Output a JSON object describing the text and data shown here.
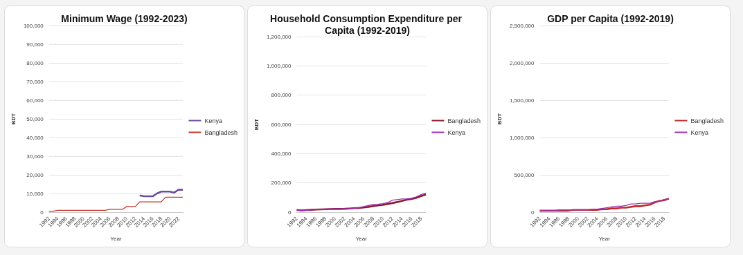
{
  "chart_data": [
    {
      "type": "line",
      "title": "Minimum Wage (1992-2023)",
      "xlabel": "Year",
      "ylabel": "BDT",
      "categories": [
        "1992",
        null,
        "1994",
        null,
        "1996",
        null,
        "1998",
        null,
        "2000",
        null,
        "2002",
        null,
        "2004",
        null,
        "2006",
        null,
        "2008",
        null,
        "2010",
        null,
        "2012",
        null,
        "2014",
        null,
        "2016",
        null,
        "2018",
        null,
        "2020",
        null,
        "2022",
        null
      ],
      "series": [
        {
          "name": "Kenya",
          "color": "#6a4c9c",
          "values": [
            null,
            null,
            null,
            null,
            null,
            null,
            null,
            null,
            null,
            null,
            null,
            null,
            null,
            null,
            null,
            null,
            null,
            null,
            null,
            null,
            null,
            9000,
            8500,
            8500,
            8500,
            10000,
            11000,
            11000,
            11000,
            10500,
            12000,
            12000
          ]
        },
        {
          "name": "Bangladesh",
          "color": "#c0392b",
          "values": [
            500,
            500,
            1000,
            1000,
            1000,
            1000,
            1000,
            1000,
            1000,
            1000,
            1000,
            1000,
            1000,
            1000,
            1500,
            1500,
            1500,
            1500,
            3000,
            3000,
            3000,
            5500,
            5500,
            5500,
            5500,
            5500,
            5500,
            8000,
            8000,
            8000,
            8000,
            8000
          ]
        }
      ],
      "ylim": [
        0,
        100000
      ],
      "yticks": [
        {
          "value": 0,
          "label": "0"
        },
        {
          "value": 10000,
          "label": "10,000"
        },
        {
          "value": 20000,
          "label": "20,000"
        },
        {
          "value": 30000,
          "label": "30,000"
        },
        {
          "value": 40000,
          "label": "40,000"
        },
        {
          "value": 50000,
          "label": "50,000"
        },
        {
          "value": 60000,
          "label": "60,000"
        },
        {
          "value": 70000,
          "label": "70,000"
        },
        {
          "value": 80000,
          "label": "80,000"
        },
        {
          "value": 90000,
          "label": "90,000"
        },
        {
          "value": 100000,
          "label": "100,000"
        }
      ],
      "grid": "y",
      "legend": "right",
      "marker": "none"
    },
    {
      "type": "line",
      "title": "Household Consumption Expenditure per Capita (1992-2019)",
      "xlabel": "Year",
      "ylabel": "BDT",
      "categories": [
        "1992",
        null,
        "1994",
        null,
        "1996",
        null,
        "1998",
        null,
        "2000",
        null,
        "2002",
        null,
        "2004",
        null,
        "2006",
        null,
        "2008",
        null,
        "2010",
        null,
        "2012",
        null,
        "2014",
        null,
        "2016",
        null,
        "2018",
        null
      ],
      "series": [
        {
          "name": "Bangladesh",
          "color": "#8b1a2b",
          "values": [
            15000,
            12000,
            14000,
            16000,
            18000,
            19000,
            20000,
            21000,
            22000,
            22000,
            23000,
            25000,
            27000,
            29000,
            32000,
            36000,
            41000,
            46000,
            50000,
            56000,
            62000,
            69000,
            77000,
            85000,
            90000,
            98000,
            110000,
            120000
          ]
        },
        {
          "name": "Kenya",
          "color": "#9b30c0",
          "values": [
            15000,
            10000,
            12000,
            15000,
            17000,
            19000,
            21000,
            22000,
            22000,
            22000,
            23000,
            24000,
            27000,
            30000,
            38000,
            46000,
            52000,
            54000,
            58000,
            65000,
            82000,
            86000,
            90000,
            90000,
            95000,
            105000,
            120000,
            130000
          ]
        }
      ],
      "ylim": [
        0,
        1200000
      ],
      "yticks": [
        {
          "value": 0,
          "label": "0"
        },
        {
          "value": 200000,
          "label": "200,000"
        },
        {
          "value": 400000,
          "label": "400,000"
        },
        {
          "value": 600000,
          "label": "600,000"
        },
        {
          "value": 800000,
          "label": "800,000"
        },
        {
          "value": 1000000,
          "label": "1,000,000"
        },
        {
          "value": 1200000,
          "label": "1,200,000"
        }
      ],
      "grid": "y",
      "legend": "right",
      "marker": "none"
    },
    {
      "type": "line",
      "title": "GDP per Capita (1992-2019)",
      "xlabel": "Year",
      "ylabel": "BDT",
      "categories": [
        "1992",
        null,
        "1994",
        null,
        "1996",
        null,
        "1998",
        null,
        "2000",
        null,
        "2002",
        null,
        "2004",
        null,
        "2006",
        null,
        "2008",
        null,
        "2010",
        null,
        "2012",
        null,
        "2014",
        null,
        "2016",
        null,
        "2018",
        null
      ],
      "series": [
        {
          "name": "Bangladesh",
          "color": "#c0282d",
          "values": [
            20000,
            20000,
            20000,
            20000,
            20000,
            20000,
            20000,
            30000,
            30000,
            30000,
            30000,
            30000,
            30000,
            40000,
            40000,
            50000,
            50000,
            60000,
            60000,
            70000,
            80000,
            80000,
            90000,
            100000,
            130000,
            150000,
            160000,
            180000
          ]
        },
        {
          "name": "Kenya",
          "color": "#a030b0",
          "values": [
            20000,
            20000,
            20000,
            20000,
            30000,
            30000,
            30000,
            30000,
            30000,
            30000,
            30000,
            40000,
            40000,
            50000,
            60000,
            70000,
            80000,
            80000,
            90000,
            110000,
            110000,
            120000,
            120000,
            120000,
            140000,
            150000,
            170000,
            180000
          ]
        }
      ],
      "ylim": [
        0,
        2500000
      ],
      "yticks": [
        {
          "value": 0,
          "label": "0"
        },
        {
          "value": 500000,
          "label": "500,000"
        },
        {
          "value": 1000000,
          "label": "1,000,000"
        },
        {
          "value": 1500000,
          "label": "1,500,000"
        },
        {
          "value": 2000000,
          "label": "2,000,000"
        },
        {
          "value": 2500000,
          "label": "2,500,000"
        }
      ],
      "grid": "y",
      "legend": "right",
      "marker": "none"
    }
  ]
}
